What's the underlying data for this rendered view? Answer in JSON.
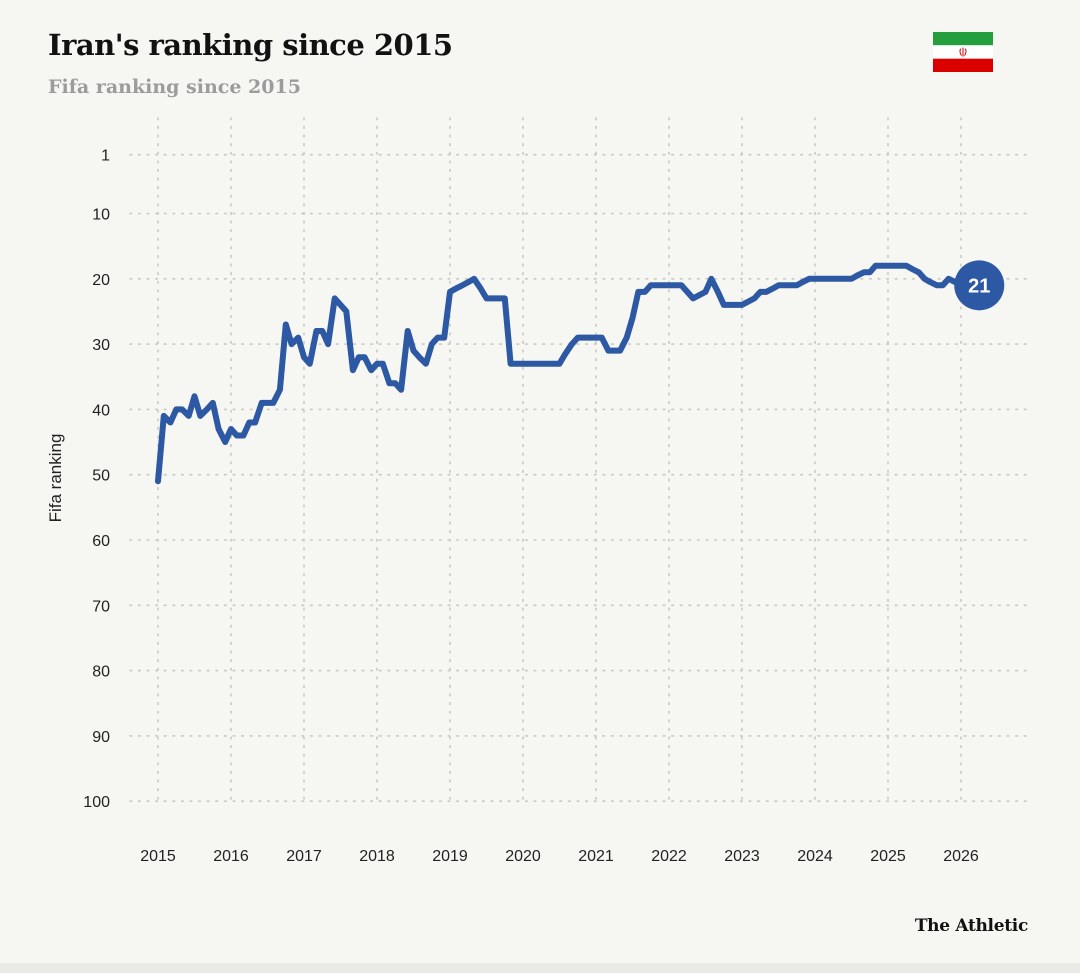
{
  "header": {
    "title": "Iran's ranking since 2015",
    "subtitle": "Fifa ranking since 2015"
  },
  "footer": {
    "brand": "The Athletic"
  },
  "flag": {
    "icon": "iran-flag-icon",
    "colors": {
      "green": "#239f40",
      "white": "#ffffff",
      "red": "#da0000",
      "emblem": "#da0000"
    }
  },
  "colors": {
    "line": "#2d58a3",
    "grid": "#c7c7c4",
    "text": "#222222",
    "background": "#f6f6f2"
  },
  "chart_data": {
    "type": "line",
    "title": "Iran's ranking since 2015",
    "subtitle": "Fifa ranking since 2015",
    "xlabel": "",
    "ylabel": "Fifa ranking",
    "y_inverted": true,
    "ylim": [
      1,
      100
    ],
    "yticks": [
      1,
      10,
      20,
      30,
      40,
      50,
      60,
      70,
      80,
      90,
      100
    ],
    "xlim": [
      2015,
      2026.5
    ],
    "xticks": [
      2015,
      2016,
      2017,
      2018,
      2019,
      2020,
      2021,
      2022,
      2023,
      2024,
      2025,
      2026
    ],
    "grid": true,
    "end_label": "21",
    "series": [
      {
        "x": [
          2015.0,
          2015.08,
          2015.17,
          2015.25,
          2015.33,
          2015.42,
          2015.5,
          2015.58,
          2015.67,
          2015.75,
          2015.83,
          2015.92,
          2016.0,
          2016.08,
          2016.17,
          2016.25,
          2016.33,
          2016.42,
          2016.5,
          2016.58,
          2016.67,
          2016.75,
          2016.83,
          2016.92,
          2017.0,
          2017.08,
          2017.17,
          2017.25,
          2017.33,
          2017.42,
          2017.5,
          2017.58,
          2017.67,
          2017.75,
          2017.83,
          2017.92,
          2018.0,
          2018.08,
          2018.17,
          2018.25,
          2018.33,
          2018.42,
          2018.5,
          2018.58,
          2018.67,
          2018.75,
          2018.83,
          2018.92,
          2019.0,
          2019.08,
          2019.17,
          2019.25,
          2019.33,
          2019.42,
          2019.5,
          2019.58,
          2019.67,
          2019.75,
          2019.83,
          2020.0,
          2020.25,
          2020.5,
          2020.58,
          2020.67,
          2020.75,
          2020.83,
          2020.92,
          2021.0,
          2021.08,
          2021.17,
          2021.25,
          2021.33,
          2021.42,
          2021.5,
          2021.58,
          2021.67,
          2021.75,
          2021.83,
          2021.92,
          2022.0,
          2022.17,
          2022.33,
          2022.5,
          2022.58,
          2022.67,
          2022.75,
          2022.83,
          2022.92,
          2023.0,
          2023.17,
          2023.25,
          2023.33,
          2023.42,
          2023.5,
          2023.58,
          2023.67,
          2023.75,
          2023.83,
          2023.92,
          2024.0,
          2024.25,
          2024.5,
          2024.58,
          2024.67,
          2024.75,
          2024.83,
          2025.0,
          2025.17,
          2025.25,
          2025.33,
          2025.42,
          2025.5,
          2025.58,
          2025.67,
          2025.75,
          2025.83,
          2025.92,
          2026.0,
          2026.25
        ],
        "y": [
          51,
          41,
          42,
          40,
          40,
          41,
          38,
          41,
          40,
          39,
          43,
          45,
          43,
          44,
          44,
          42,
          42,
          39,
          39,
          39,
          37,
          27,
          30,
          29,
          32,
          33,
          28,
          28,
          30,
          23,
          24,
          25,
          34,
          32,
          32,
          34,
          33,
          33,
          36,
          36,
          37,
          28,
          31,
          32,
          33,
          30,
          29,
          29,
          22,
          21.5,
          21,
          20.5,
          20,
          21.5,
          23,
          23,
          23,
          23,
          33,
          33,
          33,
          33,
          31.5,
          30,
          29,
          29,
          29,
          29,
          29,
          31,
          31,
          31,
          29,
          26,
          22,
          22,
          21,
          21,
          21,
          21,
          21,
          23,
          22,
          20,
          22,
          24,
          24,
          24,
          24,
          23,
          22,
          22,
          21.5,
          21,
          21,
          21,
          21,
          20.5,
          20,
          20,
          20,
          20,
          19.5,
          19,
          19,
          18,
          18,
          18,
          18,
          18.5,
          19,
          20,
          20.5,
          21,
          21,
          20,
          20.5,
          21,
          21
        ]
      }
    ]
  }
}
